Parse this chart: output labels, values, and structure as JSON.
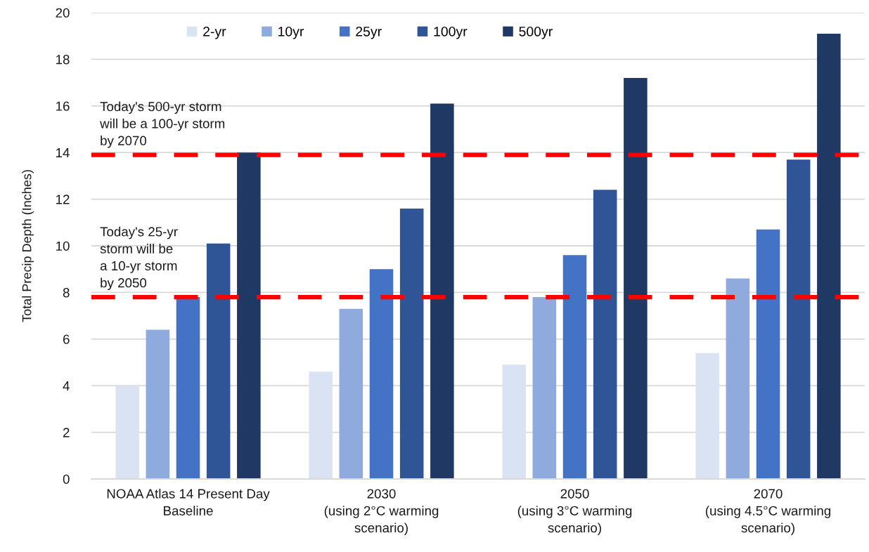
{
  "chart_data": {
    "type": "bar",
    "categories": [
      "NOAA Atlas 14 Present Day\nBaseline",
      "2030\n(using 2°C warming\nscenario)",
      "2050\n(using 3°C warming\nscenario)",
      "2070\n(using 4.5°C warming\nscenario)"
    ],
    "series": [
      {
        "name": "2-yr",
        "color": "#dae3f3",
        "values": [
          4.0,
          4.6,
          4.9,
          5.4
        ]
      },
      {
        "name": "10yr",
        "color": "#8faadc",
        "values": [
          6.4,
          7.3,
          7.8,
          8.6
        ]
      },
      {
        "name": "25yr",
        "color": "#4472c4",
        "values": [
          7.8,
          9.0,
          9.6,
          10.7
        ]
      },
      {
        "name": "100yr",
        "color": "#2f5597",
        "values": [
          10.1,
          11.6,
          12.4,
          13.7
        ]
      },
      {
        "name": "500yr",
        "color": "#203864",
        "values": [
          14.0,
          16.1,
          17.2,
          19.1
        ]
      }
    ],
    "ylabel": "Total Precip Depth (Inches)",
    "ylim": [
      0,
      20
    ],
    "yticks": [
      0,
      2,
      4,
      6,
      8,
      10,
      12,
      14,
      16,
      18,
      20
    ],
    "ref_lines": [
      {
        "axis": "y",
        "value": 13.9,
        "label": "Today's 500-yr storm\nwill be a 100-yr storm\nby 2070",
        "color": "#ff0000",
        "line_style": "dashed"
      },
      {
        "axis": "y",
        "value": 7.8,
        "label": "Today's 25-yr\nstorm will be\na 10-yr storm\nby 2050",
        "color": "#ff0000",
        "line_style": "dashed"
      }
    ],
    "grid": "y",
    "legend": "top"
  }
}
